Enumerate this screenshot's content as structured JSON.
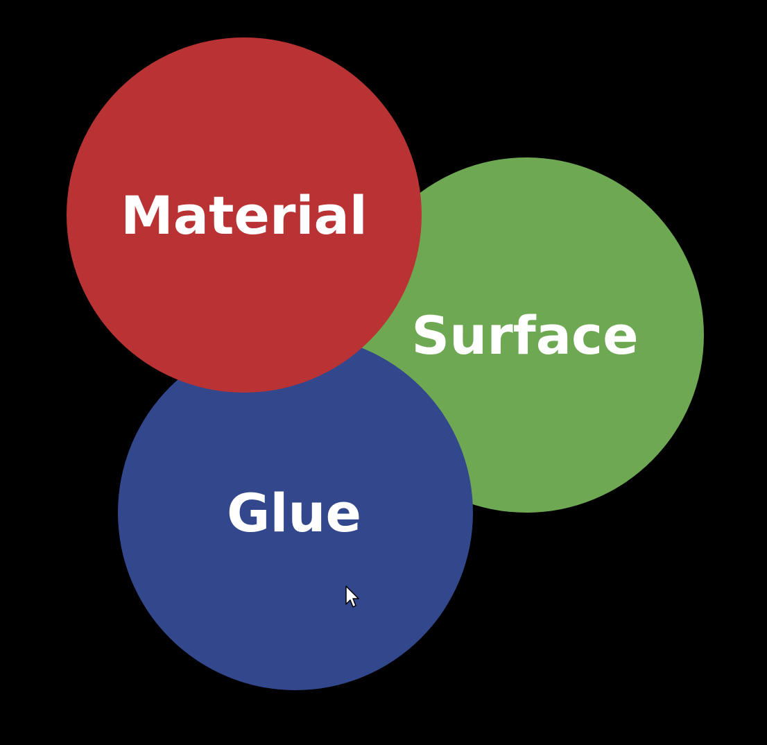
{
  "diagram": {
    "circles": [
      {
        "id": "surface",
        "label": "Surface",
        "color": "#6fa853"
      },
      {
        "id": "glue",
        "label": "Glue",
        "color": "#33478c"
      },
      {
        "id": "material",
        "label": "Material",
        "color": "#b93334"
      }
    ]
  },
  "cursor": {
    "icon": "arrow-pointer-icon",
    "color": "#ffffff"
  },
  "colors": {
    "background": "#000000",
    "label_text": "#ffffff"
  }
}
